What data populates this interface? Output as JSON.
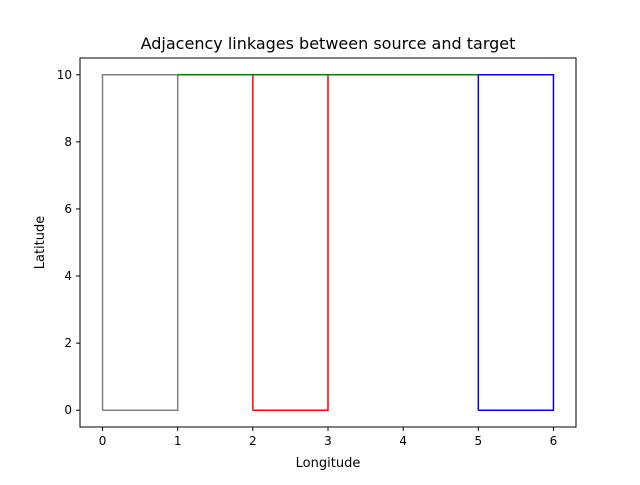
{
  "chart_data": {
    "type": "line",
    "title": "Adjacency linkages between source and target",
    "xlabel": "Longitude",
    "ylabel": "Latitude",
    "xlim": [
      -0.3,
      6.3
    ],
    "ylim": [
      -0.5,
      10.5
    ],
    "xticks": [
      0,
      1,
      2,
      3,
      4,
      5,
      6
    ],
    "yticks": [
      0,
      2,
      4,
      6,
      8,
      10
    ],
    "grid": false,
    "legend": "none",
    "series": [
      {
        "color": "#808080",
        "points": [
          [
            0,
            0
          ],
          [
            1,
            0
          ],
          [
            1,
            10
          ],
          [
            0,
            10
          ],
          [
            0,
            0
          ]
        ]
      },
      {
        "color": "#ff0000",
        "points": [
          [
            2,
            0
          ],
          [
            3,
            0
          ],
          [
            3,
            10
          ],
          [
            2,
            10
          ],
          [
            2,
            0
          ]
        ]
      },
      {
        "color": "#0000ff",
        "points": [
          [
            5,
            0
          ],
          [
            6,
            0
          ],
          [
            6,
            10
          ],
          [
            5,
            10
          ],
          [
            5,
            0
          ]
        ]
      },
      {
        "color": "#008000",
        "points": [
          [
            1,
            10
          ],
          [
            5,
            10
          ]
        ]
      }
    ]
  }
}
